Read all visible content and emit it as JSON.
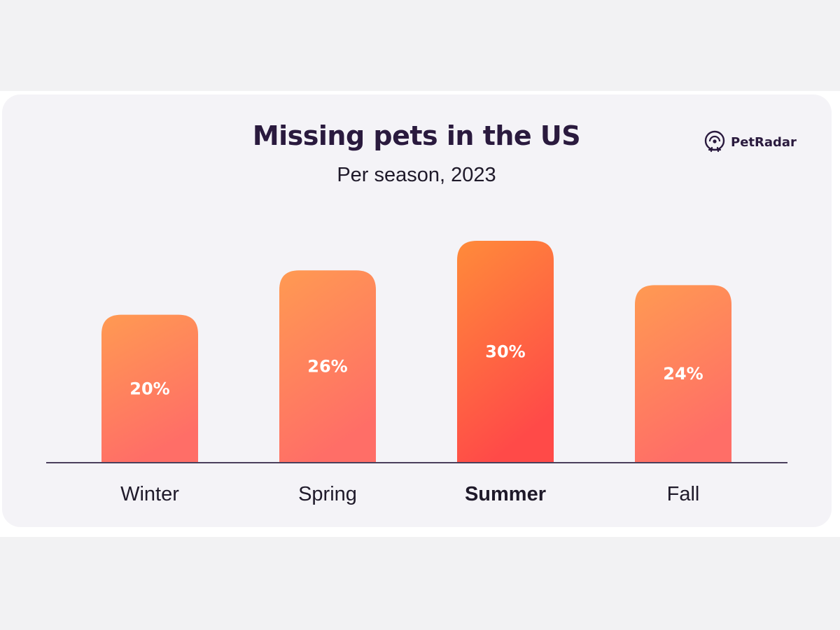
{
  "colors": {
    "background": "#f2f2f3",
    "card": "#f4f3f7",
    "bar_normal_top": "#ff9a52",
    "bar_normal_bottom": "#ff6e67",
    "bar_highlight_top": "#ff8b3a",
    "bar_highlight_bottom": "#ff4a48",
    "value_label": "#ffffff",
    "axis": "#4a3f5c",
    "title": "#2a1a3e"
  },
  "brand": {
    "name": "PetRadar",
    "icon": "radar-pet-logo-icon"
  },
  "chart_data": {
    "type": "bar",
    "title": "Missing pets in the US",
    "subtitle": "Per season, 2023",
    "xlabel": "",
    "ylabel": "",
    "categories": [
      "Winter",
      "Spring",
      "Summer",
      "Fall"
    ],
    "values": [
      20,
      26,
      30,
      24
    ],
    "value_labels": [
      "20%",
      "26%",
      "30%",
      "24%"
    ],
    "highlight_category": "Summer",
    "ylim": [
      0,
      30
    ],
    "grid": false,
    "legend": "none"
  }
}
